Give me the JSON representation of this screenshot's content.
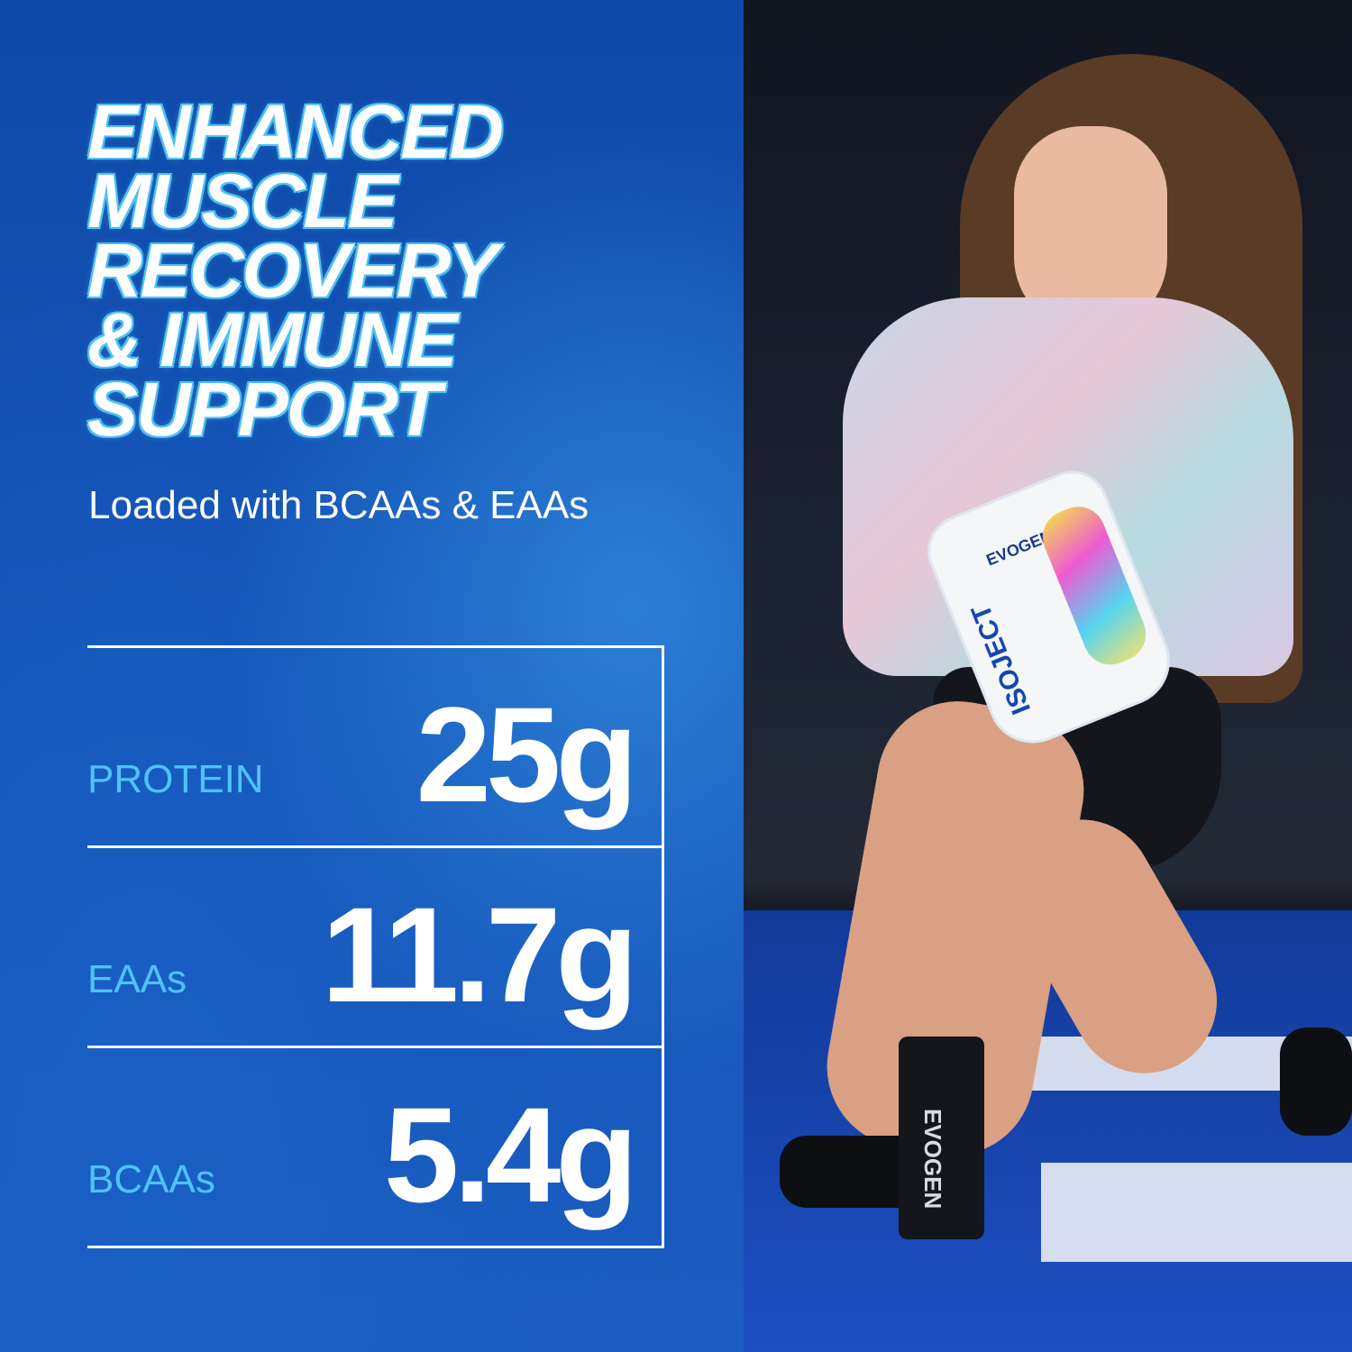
{
  "headline": {
    "lines": [
      "ENHANCED",
      "MUSCLE",
      "RECOVERY",
      "& IMMUNE",
      "SUPPORT"
    ]
  },
  "subtitle": "Loaded with BCAAs & EAAs",
  "stats": [
    {
      "label": "PROTEIN",
      "value": "25g"
    },
    {
      "label": "EAAs",
      "value": "11.7g"
    },
    {
      "label": "BCAAs",
      "value": "5.4g"
    }
  ],
  "photo": {
    "product_brand": "EVOGEN",
    "product_name": "ISOJECT",
    "bottle_brand": "EVOGEN"
  },
  "colors": {
    "panel_blue": "#1456b8",
    "label_cyan": "#4fc3f7",
    "text_white": "#ffffff"
  }
}
